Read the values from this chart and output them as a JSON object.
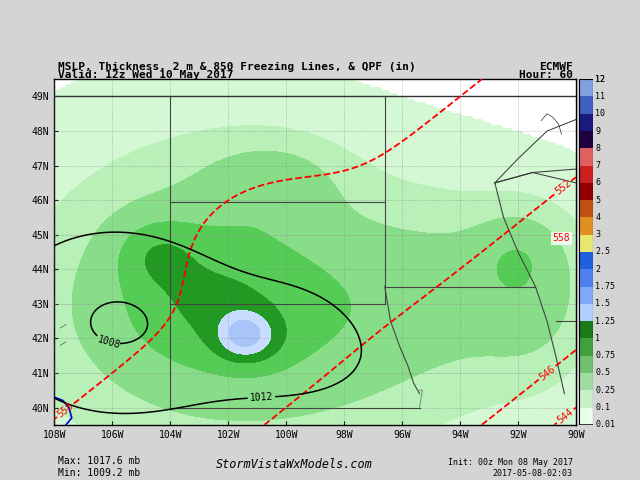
{
  "title_line1": "MSLP, Thickness, 2 m & 850 Freezing Lines, & QPF (in)",
  "title_line2": "Valid: 12z Wed 10 May 2017",
  "title_right1": "ECMWF",
  "title_right2": "Hour: 60",
  "bottom_left": "Max: 1017.6 mb\nMin: 1009.2 mb",
  "bottom_center": "StormVistaWxModels.com",
  "bottom_right": "Init: 00z Mon 08 May 2017\n2017-05-08-02:03",
  "xlim": [
    -108,
    -90
  ],
  "ylim": [
    39.5,
    49.5
  ],
  "xlabel_ticks": [
    "108W",
    "106W",
    "104W",
    "102W",
    "100W",
    "98W",
    "96W",
    "94W",
    "92W",
    "90W"
  ],
  "xlabel_vals": [
    -108,
    -106,
    -104,
    -102,
    -100,
    -98,
    -96,
    -94,
    -92,
    -90
  ],
  "ylabel_ticks": [
    "40N",
    "41N",
    "42N",
    "43N",
    "44N",
    "45N",
    "46N",
    "47N",
    "48N",
    "49N"
  ],
  "ylabel_vals": [
    40,
    41,
    42,
    43,
    44,
    45,
    46,
    47,
    48,
    49
  ],
  "qpf_levels": [
    0.01,
    0.1,
    0.25,
    0.5,
    0.75,
    1.0,
    1.25,
    1.5,
    1.75,
    2.0,
    2.5,
    3.0,
    4.0,
    5.0,
    6.0,
    7.0,
    8.0,
    9.0,
    10.0,
    11.0,
    12.0
  ],
  "qpf_colors": [
    "#d4f7d4",
    "#b8f0b8",
    "#88dd88",
    "#55cc55",
    "#229922",
    "#c8dcff",
    "#a8c4f8",
    "#88a8f0",
    "#6888e0",
    "#f0f090",
    "#e8c020",
    "#d09010",
    "#b86010",
    "#903008",
    "#c03030",
    "#a01010",
    "#800000",
    "#600000",
    "#ff44ff",
    "#dd00dd"
  ],
  "bg_color": "#d4d4d4",
  "map_bg": "#ffffff",
  "land_color": "#ffffff"
}
